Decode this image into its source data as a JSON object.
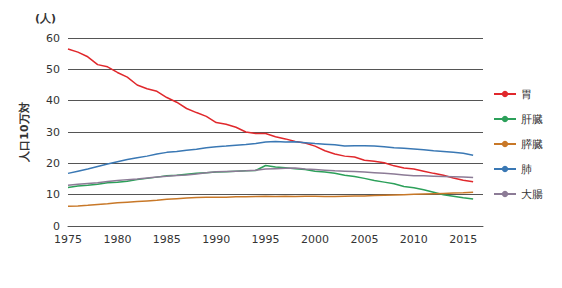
{
  "chart_data": {
    "type": "line",
    "title": "(人)",
    "y_label": "人口10万対",
    "x": [
      1975,
      1976,
      1977,
      1978,
      1979,
      1980,
      1981,
      1982,
      1983,
      1984,
      1985,
      1986,
      1987,
      1988,
      1989,
      1990,
      1991,
      1992,
      1993,
      1994,
      1995,
      1996,
      1997,
      1998,
      1999,
      2000,
      2001,
      2002,
      2003,
      2004,
      2005,
      2006,
      2007,
      2008,
      2009,
      2010,
      2011,
      2012,
      2013,
      2014,
      2015,
      2016
    ],
    "series": [
      {
        "name": "胃",
        "color": "#e0282c",
        "values": [
          56.5,
          55.5,
          54,
          51.5,
          50.8,
          49,
          47.5,
          45,
          43.8,
          43,
          41,
          39.5,
          37.5,
          36.2,
          35,
          33,
          32.5,
          31.5,
          30,
          29.5,
          29.5,
          28.5,
          27.8,
          27,
          26.5,
          25.5,
          24,
          23,
          22.3,
          22,
          21,
          20.7,
          20.2,
          19.2,
          18.5,
          18.2,
          17.5,
          16.8,
          16.2,
          15.3,
          14.6,
          14.1
        ]
      },
      {
        "name": "肝臓",
        "color": "#2ca05a",
        "values": [
          12.3,
          12.8,
          13,
          13.3,
          13.8,
          14,
          14.3,
          14.8,
          15.2,
          15.6,
          16,
          16.2,
          16.5,
          16.8,
          17,
          17.2,
          17.3,
          17.5,
          17.6,
          17.7,
          19.3,
          18.8,
          18.6,
          18.3,
          18,
          17.5,
          17.2,
          16.8,
          16.2,
          15.8,
          15.2,
          14.5,
          14,
          13.5,
          12.6,
          12.2,
          11.6,
          10.8,
          10,
          9.5,
          9,
          8.6
        ]
      },
      {
        "name": "膵臓",
        "color": "#c87828",
        "values": [
          6.3,
          6.4,
          6.6,
          6.9,
          7.1,
          7.4,
          7.6,
          7.8,
          8,
          8.2,
          8.5,
          8.7,
          8.9,
          9.1,
          9.2,
          9.2,
          9.2,
          9.3,
          9.3,
          9.4,
          9.5,
          9.4,
          9.5,
          9.4,
          9.5,
          9.5,
          9.4,
          9.4,
          9.5,
          9.6,
          9.6,
          9.7,
          9.8,
          9.9,
          10,
          10.1,
          10.2,
          10.3,
          10.4,
          10.5,
          10.6,
          10.8
        ]
      },
      {
        "name": "肺",
        "color": "#3a78b4",
        "values": [
          16.8,
          17.5,
          18.2,
          19,
          19.8,
          20.5,
          21.2,
          21.8,
          22.3,
          23,
          23.5,
          23.8,
          24.2,
          24.5,
          25,
          25.3,
          25.5,
          25.8,
          26,
          26.3,
          26.8,
          27,
          26.8,
          26.9,
          26.6,
          26.3,
          26.1,
          25.9,
          25.5,
          25.6,
          25.6,
          25.5,
          25.3,
          25,
          24.8,
          24.6,
          24.3,
          24,
          23.8,
          23.5,
          23.2,
          22.6
        ]
      },
      {
        "name": "大腸",
        "color": "#8c7b96",
        "values": [
          13,
          13.3,
          13.6,
          13.8,
          14.2,
          14.5,
          14.8,
          15,
          15.3,
          15.6,
          15.9,
          16.1,
          16.3,
          16.6,
          17,
          17.3,
          17.4,
          17.5,
          17.6,
          17.8,
          18.2,
          18.3,
          18.4,
          18.5,
          18.2,
          18,
          17.8,
          17.6,
          17.5,
          17.4,
          17.2,
          17,
          16.8,
          16.6,
          16.3,
          16,
          16,
          15.9,
          15.8,
          15.7,
          15.6,
          15.5
        ]
      }
    ],
    "xlim": [
      1975,
      2017
    ],
    "xticks": [
      1975,
      1980,
      1985,
      1990,
      1995,
      2000,
      2005,
      2010,
      2015
    ],
    "ylim": [
      0,
      60
    ],
    "yticks": [
      0,
      10,
      20,
      30,
      40,
      50,
      60
    ],
    "grid": true,
    "legend": "right"
  }
}
